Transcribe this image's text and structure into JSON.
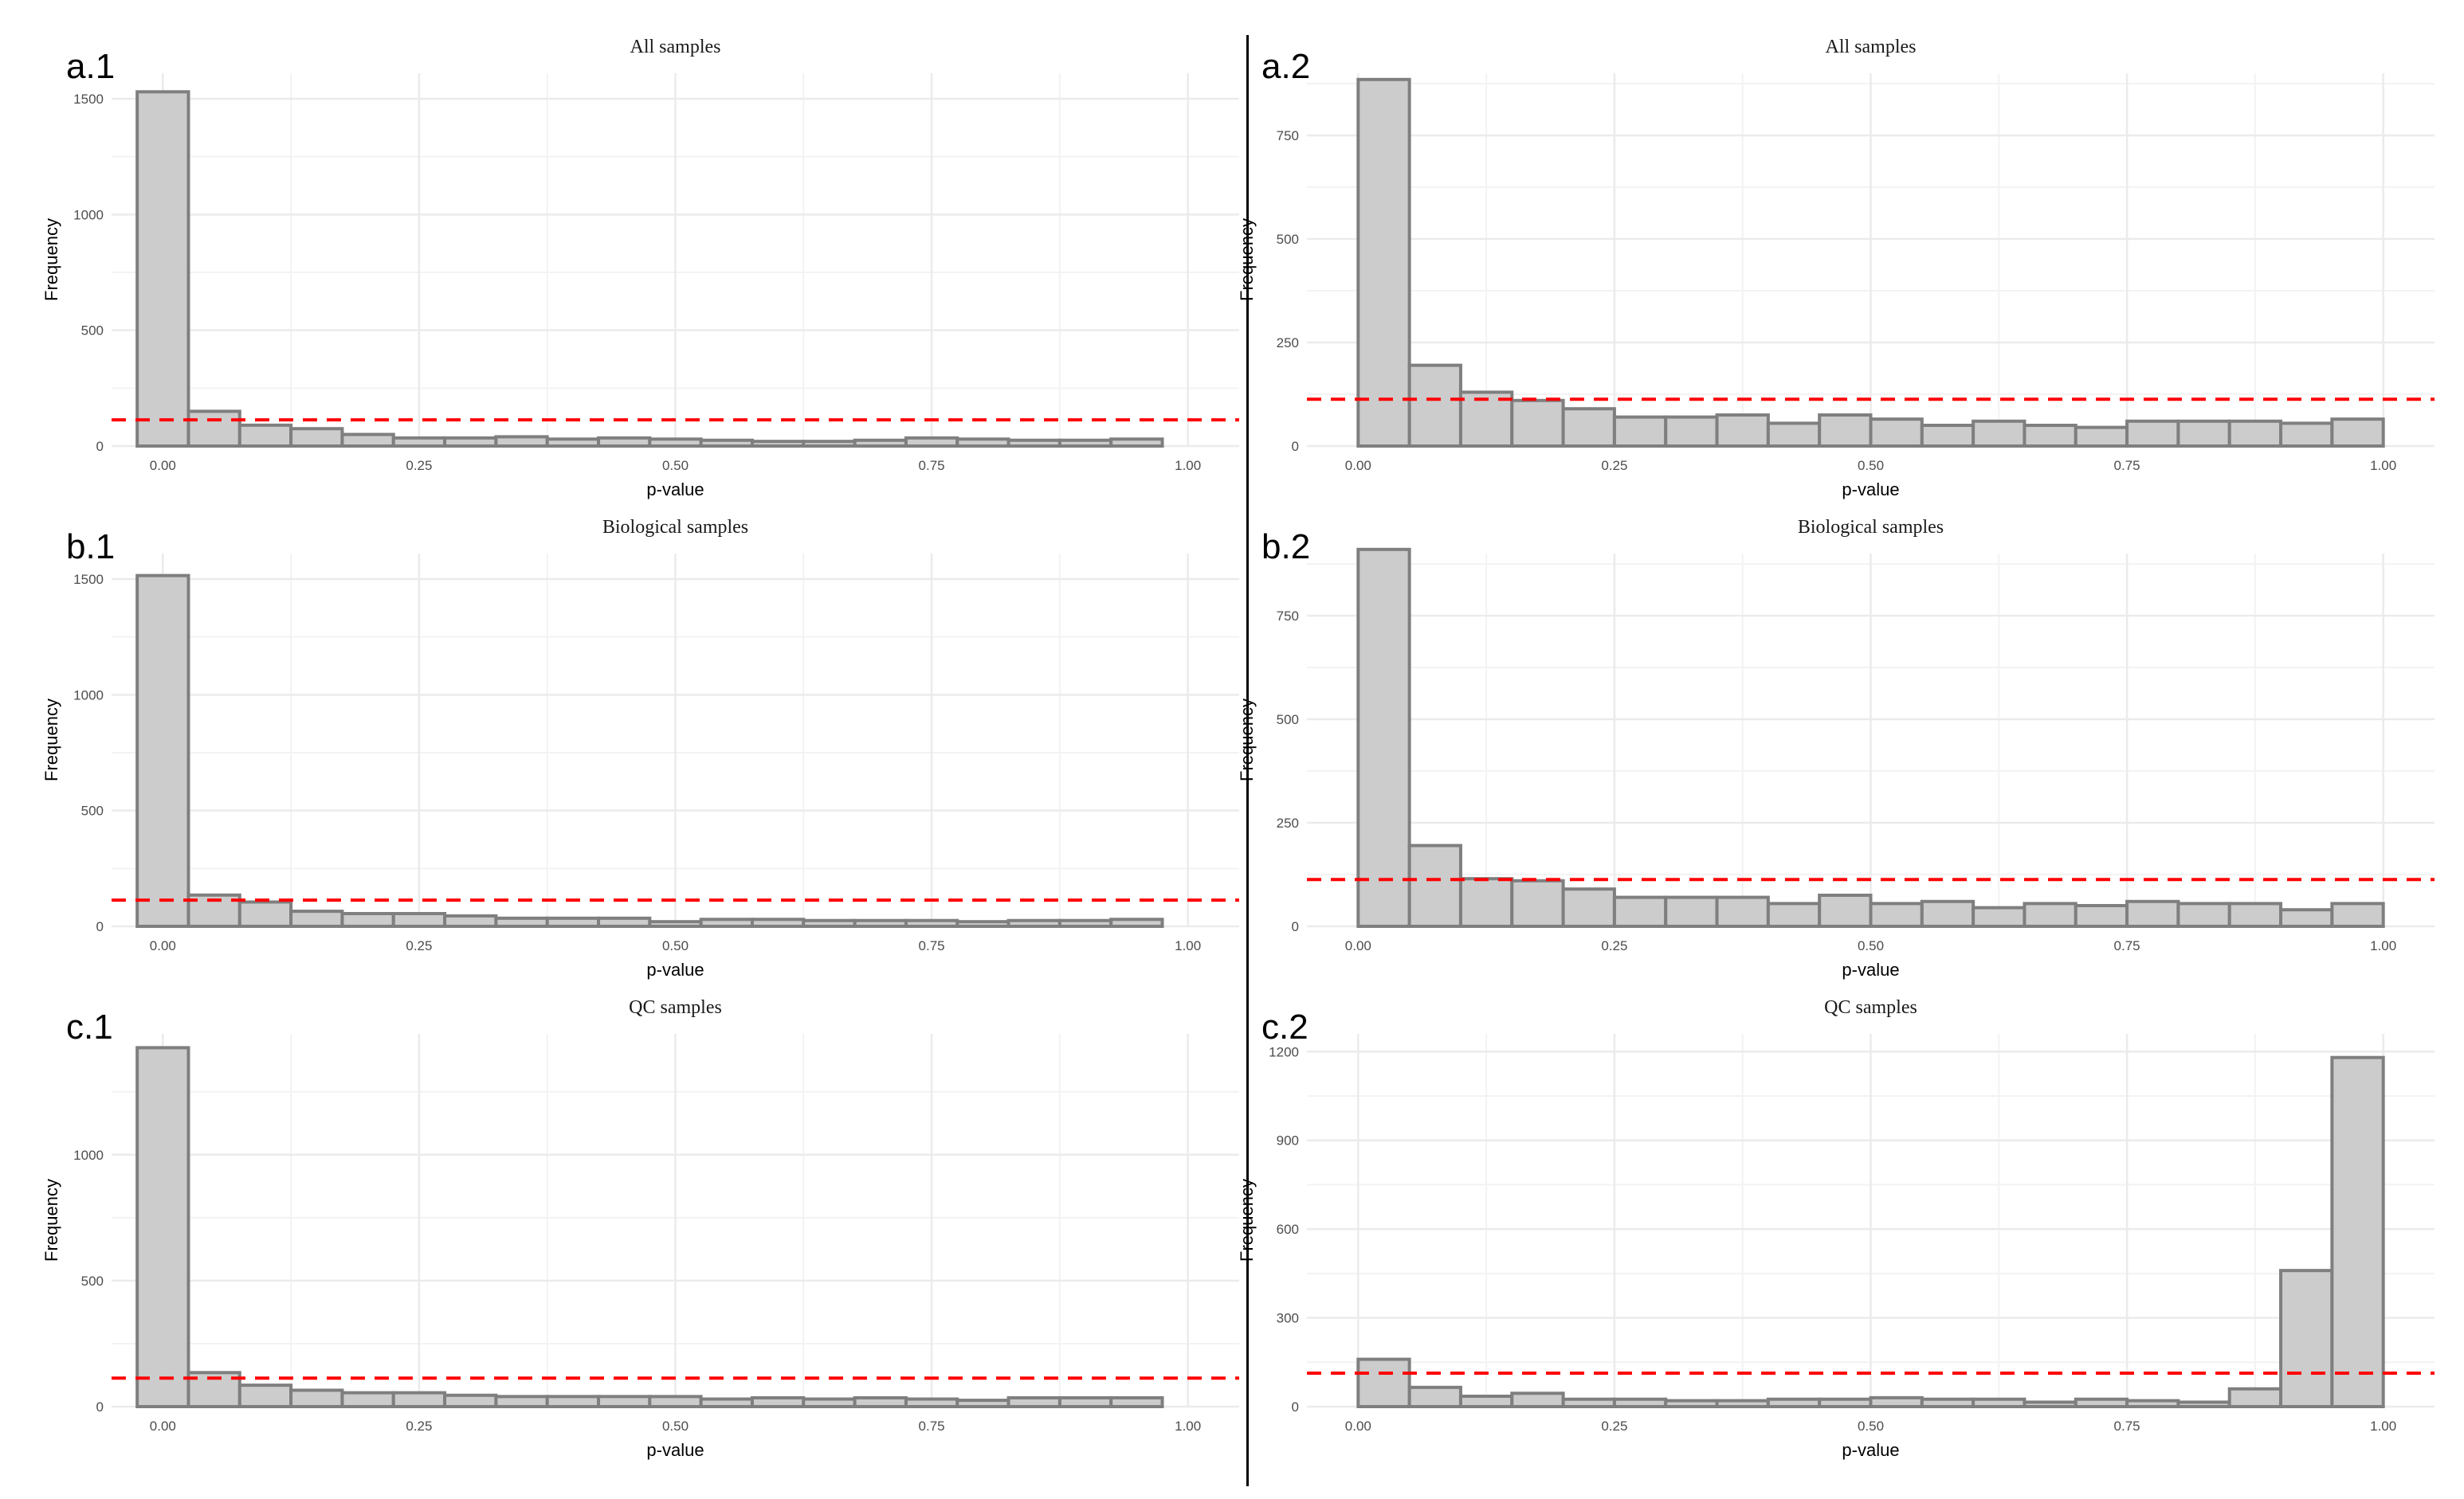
{
  "chart_data": [
    {
      "type": "bar",
      "panel_label": "a.1",
      "title": "All samples",
      "xlabel": "p-value",
      "ylabel": "Frequency",
      "xlim": [
        -0.05,
        1.05
      ],
      "ylim": [
        0,
        1610
      ],
      "xticks": [
        "0.00",
        "0.25",
        "0.50",
        "0.75",
        "1.00"
      ],
      "yticks": [
        "0",
        "500",
        "1000",
        "1500"
      ],
      "ytick_values": [
        0,
        500,
        1000,
        1500
      ],
      "bin_width": 0.05,
      "bin_centers": [
        0.0,
        0.05,
        0.1,
        0.15,
        0.2,
        0.25,
        0.3,
        0.35,
        0.4,
        0.45,
        0.5,
        0.55,
        0.6,
        0.65,
        0.7,
        0.75,
        0.8,
        0.85,
        0.9,
        0.95,
        1.0
      ],
      "values": [
        1530,
        150,
        90,
        75,
        50,
        35,
        35,
        40,
        30,
        35,
        30,
        25,
        20,
        20,
        25,
        35,
        30,
        25,
        25,
        30,
        0
      ],
      "reference_line": 113
    },
    {
      "type": "bar",
      "panel_label": "a.2",
      "title": "All samples",
      "xlabel": "p-value",
      "ylabel": "Frequency",
      "xlim": [
        -0.05,
        1.05
      ],
      "ylim": [
        0,
        900
      ],
      "xticks": [
        "0.00",
        "0.25",
        "0.50",
        "0.75",
        "1.00"
      ],
      "yticks": [
        "0",
        "250",
        "500",
        "750"
      ],
      "ytick_values": [
        0,
        250,
        500,
        750
      ],
      "bin_width": 0.05,
      "bin_centers": [
        0.025,
        0.075,
        0.125,
        0.175,
        0.225,
        0.275,
        0.325,
        0.375,
        0.425,
        0.475,
        0.525,
        0.575,
        0.625,
        0.675,
        0.725,
        0.775,
        0.825,
        0.875,
        0.925,
        0.975
      ],
      "values": [
        885,
        195,
        130,
        110,
        90,
        70,
        70,
        75,
        55,
        75,
        65,
        50,
        60,
        50,
        45,
        60,
        60,
        60,
        55,
        65
      ],
      "reference_line": 113
    },
    {
      "type": "bar",
      "panel_label": "b.1",
      "title": "Biological samples",
      "xlabel": "p-value",
      "ylabel": "Frequency",
      "xlim": [
        -0.05,
        1.05
      ],
      "ylim": [
        0,
        1610
      ],
      "xticks": [
        "0.00",
        "0.25",
        "0.50",
        "0.75",
        "1.00"
      ],
      "yticks": [
        "0",
        "500",
        "1000",
        "1500"
      ],
      "ytick_values": [
        0,
        500,
        1000,
        1500
      ],
      "bin_width": 0.05,
      "bin_centers": [
        0.0,
        0.05,
        0.1,
        0.15,
        0.2,
        0.25,
        0.3,
        0.35,
        0.4,
        0.45,
        0.5,
        0.55,
        0.6,
        0.65,
        0.7,
        0.75,
        0.8,
        0.85,
        0.9,
        0.95,
        1.0
      ],
      "values": [
        1515,
        135,
        105,
        65,
        55,
        55,
        45,
        35,
        35,
        35,
        20,
        30,
        30,
        25,
        25,
        25,
        20,
        25,
        25,
        30,
        0
      ],
      "reference_line": 113
    },
    {
      "type": "bar",
      "panel_label": "b.2",
      "title": "Biological samples",
      "xlabel": "p-value",
      "ylabel": "Frequency",
      "xlim": [
        -0.05,
        1.05
      ],
      "ylim": [
        0,
        900
      ],
      "xticks": [
        "0.00",
        "0.25",
        "0.50",
        "0.75",
        "1.00"
      ],
      "yticks": [
        "0",
        "250",
        "500",
        "750"
      ],
      "ytick_values": [
        0,
        250,
        500,
        750
      ],
      "bin_width": 0.05,
      "bin_centers": [
        0.025,
        0.075,
        0.125,
        0.175,
        0.225,
        0.275,
        0.325,
        0.375,
        0.425,
        0.475,
        0.525,
        0.575,
        0.625,
        0.675,
        0.725,
        0.775,
        0.825,
        0.875,
        0.925,
        0.975
      ],
      "values": [
        910,
        195,
        115,
        110,
        90,
        70,
        70,
        70,
        55,
        75,
        55,
        60,
        45,
        55,
        50,
        60,
        55,
        55,
        40,
        55
      ],
      "reference_line": 113
    },
    {
      "type": "bar",
      "panel_label": "c.1",
      "title": "QC samples",
      "xlabel": "p-value",
      "ylabel": "Frequency",
      "xlim": [
        -0.05,
        1.05
      ],
      "ylim": [
        0,
        1480
      ],
      "xticks": [
        "0.00",
        "0.25",
        "0.50",
        "0.75",
        "1.00"
      ],
      "yticks": [
        "0",
        "500",
        "1000"
      ],
      "ytick_values": [
        0,
        500,
        1000
      ],
      "bin_width": 0.05,
      "bin_centers": [
        0.0,
        0.05,
        0.1,
        0.15,
        0.2,
        0.25,
        0.3,
        0.35,
        0.4,
        0.45,
        0.5,
        0.55,
        0.6,
        0.65,
        0.7,
        0.75,
        0.8,
        0.85,
        0.9,
        0.95,
        1.0
      ],
      "values": [
        1425,
        135,
        85,
        65,
        55,
        55,
        45,
        40,
        40,
        40,
        40,
        30,
        35,
        30,
        35,
        30,
        25,
        35,
        35,
        35,
        0
      ],
      "reference_line": 113
    },
    {
      "type": "bar",
      "panel_label": "c.2",
      "title": "QC samples",
      "xlabel": "p-value",
      "ylabel": "Frequency",
      "xlim": [
        -0.05,
        1.05
      ],
      "ylim": [
        0,
        1260
      ],
      "xticks": [
        "0.00",
        "0.25",
        "0.50",
        "0.75",
        "1.00"
      ],
      "yticks": [
        "0",
        "300",
        "600",
        "900",
        "1200"
      ],
      "ytick_values": [
        0,
        300,
        600,
        900,
        1200
      ],
      "bin_width": 0.05,
      "bin_centers": [
        0.025,
        0.075,
        0.125,
        0.175,
        0.225,
        0.275,
        0.325,
        0.375,
        0.425,
        0.475,
        0.525,
        0.575,
        0.625,
        0.675,
        0.725,
        0.775,
        0.825,
        0.875,
        0.925,
        0.975
      ],
      "values": [
        160,
        65,
        35,
        45,
        25,
        25,
        20,
        20,
        25,
        25,
        30,
        25,
        25,
        15,
        25,
        20,
        15,
        60,
        460,
        1180
      ],
      "reference_line": 113
    }
  ],
  "colors": {
    "bar_fill": "#cccccc",
    "bar_stroke": "#7f7f7f",
    "reference_line": "#ff0000",
    "grid": "#ebebeb",
    "text": "#1a1a1a",
    "axis_text": "#4d4d4d"
  }
}
